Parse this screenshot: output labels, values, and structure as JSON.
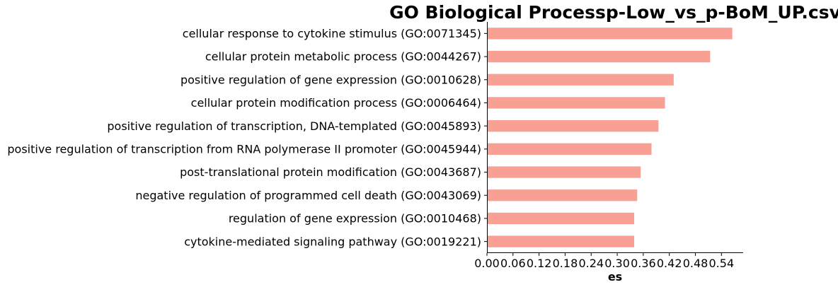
{
  "chart_data": {
    "type": "bar",
    "orientation": "horizontal",
    "title": "GO Biological Processp-Low_vs_p-BoM_UP.csv",
    "xlabel": "es",
    "ylabel": "",
    "xlim": [
      0,
      0.59
    ],
    "x_ticks": [
      0.0,
      0.06,
      0.12,
      0.18,
      0.24,
      0.3,
      0.36,
      0.42,
      0.48,
      0.54
    ],
    "x_tick_labels": [
      "0.00",
      "0.06",
      "0.12",
      "0.18",
      "0.24",
      "0.30",
      "0.36",
      "0.42",
      "0.48",
      "0.54"
    ],
    "grid": false,
    "bar_color": "#f9a094",
    "categories": [
      "cellular response to cytokine stimulus (GO:0071345)",
      "cellular protein metabolic process (GO:0044267)",
      "positive regulation of gene expression (GO:0010628)",
      "cellular protein modification process (GO:0006464)",
      "positive regulation of transcription, DNA-templated (GO:0045893)",
      "positive regulation of transcription from RNA polymerase II promoter (GO:0045944)",
      "post-translational protein modification (GO:0043687)",
      "negative regulation of programmed cell death (GO:0043069)",
      "regulation of gene expression (GO:0010468)",
      "cytokine-mediated signaling pathway (GO:0019221)"
    ],
    "values": [
      0.565,
      0.514,
      0.43,
      0.41,
      0.395,
      0.379,
      0.354,
      0.346,
      0.339,
      0.339
    ]
  }
}
